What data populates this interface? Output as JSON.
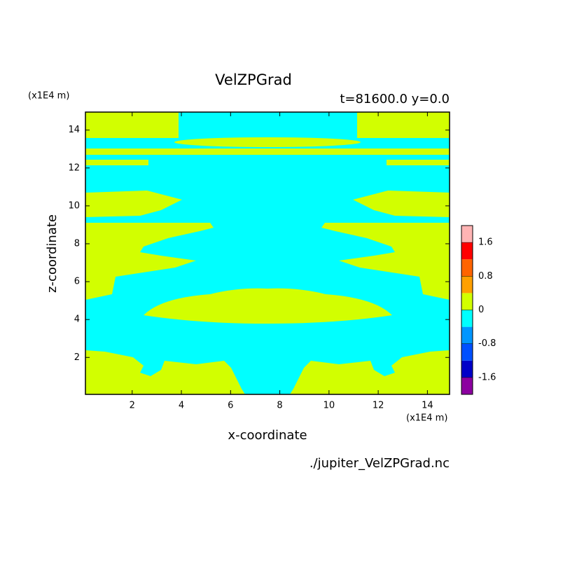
{
  "chart_data": {
    "type": "contour",
    "title": "VelZPGrad",
    "subtitle": "t=81600.0 y=0.0",
    "x_label": "x-coordinate",
    "y_label": "z-coordinate",
    "x_unit": "(x1E4 m)",
    "y_unit": "(x1E4 m)",
    "source": "./jupiter_VelZPGrad.nc",
    "xlim": [
      0.1,
      14.9
    ],
    "xticks": [
      2,
      4,
      6,
      8,
      10,
      12,
      14
    ],
    "ylim": [
      0.05,
      14.95
    ],
    "yticks": [
      2,
      4,
      6,
      8,
      10,
      12,
      14
    ],
    "colorbar": {
      "levels": [
        -2.0,
        -1.6,
        -1.2,
        -0.8,
        -0.4,
        0,
        0.4,
        0.8,
        1.2,
        1.6,
        2.0
      ],
      "colors": [
        "#8c00a0",
        "#0000c8",
        "#0050ff",
        "#0096ff",
        "#00ffff",
        "#d2ff00",
        "#ffa000",
        "#ff6400",
        "#ff0000",
        "#ffb4b4"
      ],
      "ticks": [
        -1.6,
        -0.8,
        0,
        0.8,
        1.6
      ]
    }
  }
}
